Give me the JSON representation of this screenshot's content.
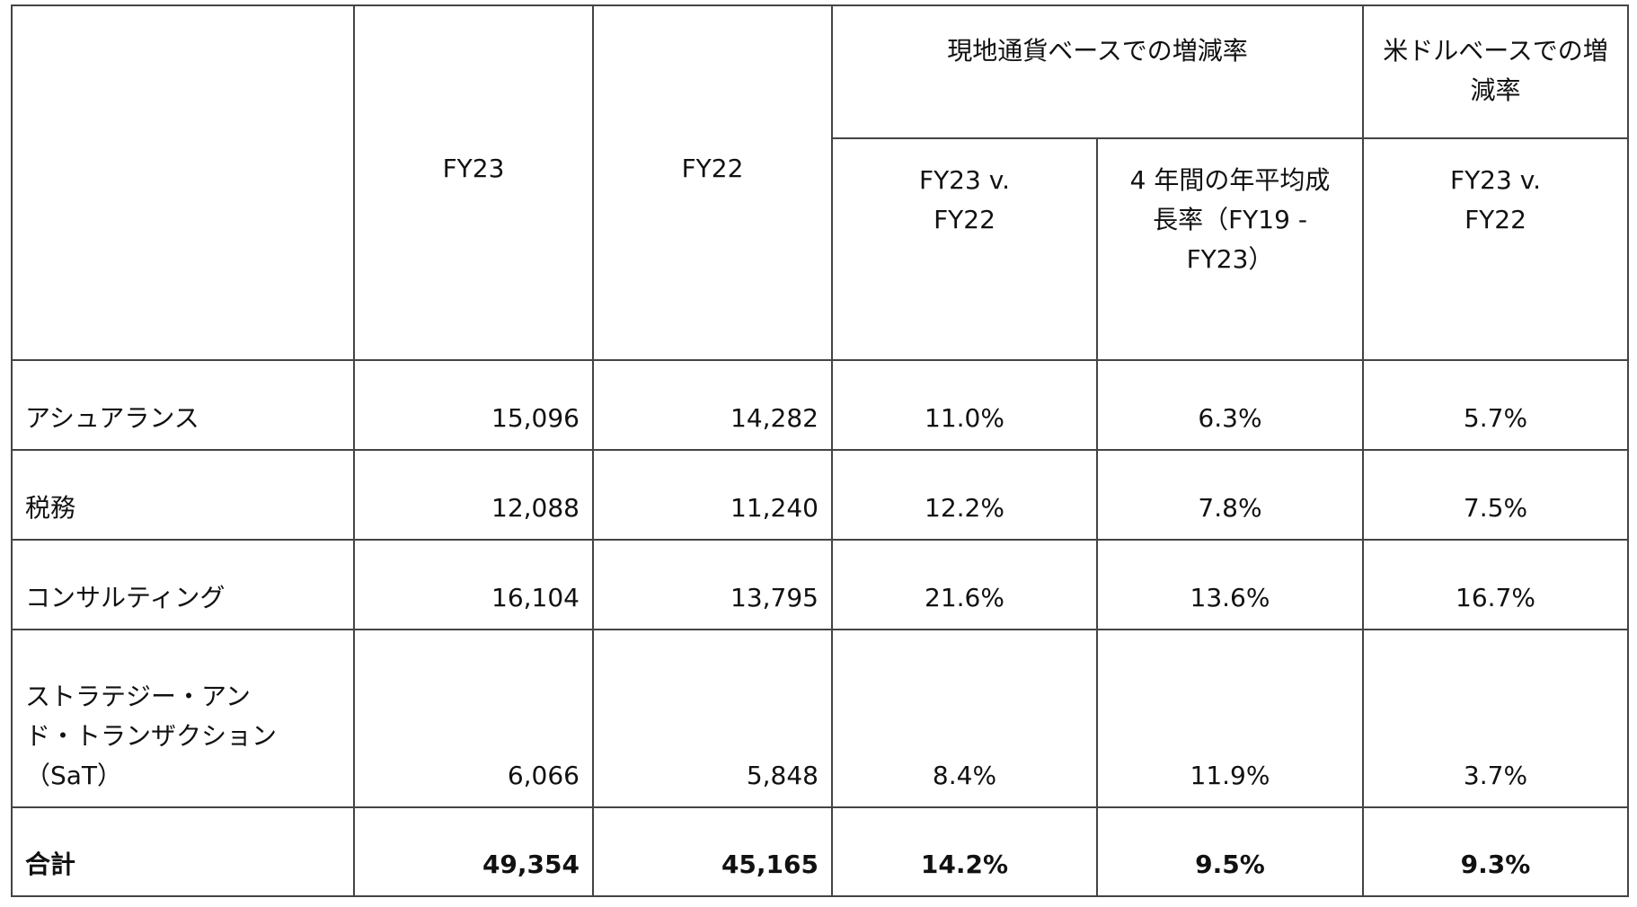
{
  "header": {
    "col_fy23": "FY23",
    "col_fy22": "FY22",
    "local_currency_group": "現地通貨ベースでの増減率",
    "usd_group": "米ドルベースでの増減率",
    "local_yoy": "FY23 v. FY22",
    "local_cagr": "4 年間の年平均成長率（FY19 - FY23）",
    "usd_yoy": "FY23 v. FY22"
  },
  "rows": [
    {
      "label": "アシュアランス",
      "fy23": "15,096",
      "fy22": "14,282",
      "local_yoy": "11.0%",
      "cagr": "6.3%",
      "usd_yoy": "5.7%"
    },
    {
      "label": "税務",
      "fy23": "12,088",
      "fy22": "11,240",
      "local_yoy": "12.2%",
      "cagr": "7.8%",
      "usd_yoy": "7.5%"
    },
    {
      "label": "コンサルティング",
      "fy23": "16,104",
      "fy22": "13,795",
      "local_yoy": "21.6%",
      "cagr": "13.6%",
      "usd_yoy": "16.7%"
    },
    {
      "label": "ストラテジー・アンド・トランザクション（SaT）",
      "fy23": "6,066",
      "fy22": "5,848",
      "local_yoy": "8.4%",
      "cagr": "11.9%",
      "usd_yoy": "3.7%"
    }
  ],
  "total": {
    "label": "合計",
    "fy23": "49,354",
    "fy22": "45,165",
    "local_yoy": "14.2%",
    "cagr": "9.5%",
    "usd_yoy": "9.3%"
  }
}
